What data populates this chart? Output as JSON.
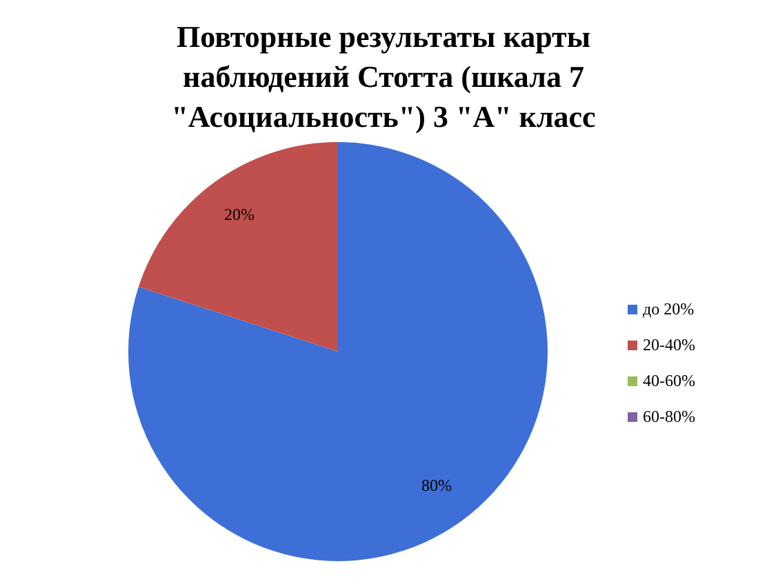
{
  "chart_data": {
    "type": "pie",
    "title": "Повторные результаты карты наблюдений Стотта (шкала 7 \"Асоциальность\") 3 \"А\" класс",
    "categories": [
      "до 20%",
      "20-40%",
      "40-60%",
      "60-80%"
    ],
    "values": [
      80,
      20,
      0,
      0
    ],
    "value_labels": [
      "80%",
      "20%",
      null,
      null
    ],
    "colors": [
      "#3d6fd6",
      "#c0504d",
      "#9bbb59",
      "#8064a2"
    ],
    "legend": "right"
  }
}
